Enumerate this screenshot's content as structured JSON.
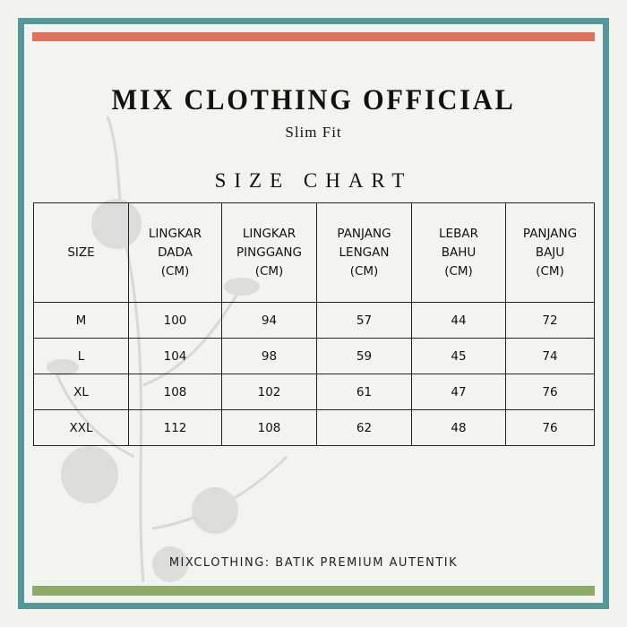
{
  "brand": {
    "title": "MIX CLOTHING OFFICIAL",
    "subtitle": "Slim Fit"
  },
  "chart_title": "SIZE CHART",
  "colors": {
    "frame": "#56979a",
    "top_bar": "#dd735f",
    "bottom_bar": "#8fab6a",
    "background": "#f3f3f0"
  },
  "table": {
    "headers": [
      "SIZE",
      "LINGKAR\nDADA\n(CM)",
      "LINGKAR\nPINGGANG\n(CM)",
      "PANJANG\nLENGAN\n(CM)",
      "LEBAR\nBAHU\n(CM)",
      "PANJANG\nBAJU\n(CM)"
    ],
    "rows": [
      [
        "M",
        "100",
        "94",
        "57",
        "44",
        "72"
      ],
      [
        "L",
        "104",
        "98",
        "59",
        "45",
        "74"
      ],
      [
        "XL",
        "108",
        "102",
        "61",
        "47",
        "76"
      ],
      [
        "XXL",
        "112",
        "108",
        "62",
        "48",
        "76"
      ]
    ]
  },
  "footer": "MIXCLOTHING: BATIK PREMIUM AUTENTIK"
}
